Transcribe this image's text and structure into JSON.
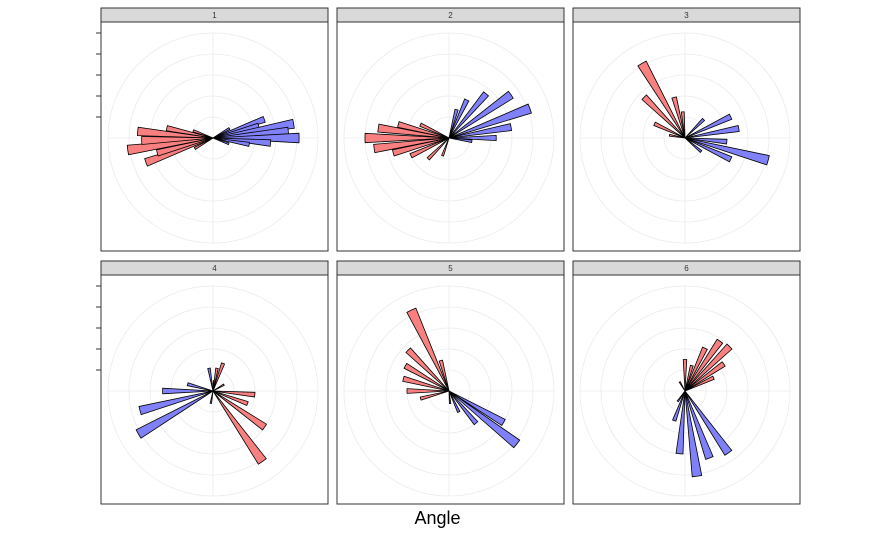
{
  "chart_data": {
    "type": "rose",
    "layout": "facet-grid-2x3",
    "xlabel": "Angle",
    "ylabel": "",
    "angle_range": [
      0,
      360
    ],
    "radius_range": [
      0,
      1
    ],
    "rings": [
      0.2,
      0.4,
      0.6,
      0.8,
      1.0
    ],
    "grid": true,
    "series_colors": {
      "red": "#f88080",
      "blue": "#8080f8"
    },
    "panels": [
      {
        "label": "1",
        "bars": [
          {
            "angle": 60,
            "value": 0.18,
            "color": "blue"
          },
          {
            "angle": 70,
            "value": 0.52,
            "color": "blue"
          },
          {
            "angle": 75,
            "value": 0.45,
            "color": "blue"
          },
          {
            "angle": 80,
            "value": 0.78,
            "color": "blue"
          },
          {
            "angle": 85,
            "value": 0.72,
            "color": "blue"
          },
          {
            "angle": 90,
            "value": 0.82,
            "color": "blue"
          },
          {
            "angle": 95,
            "value": 0.55,
            "color": "blue"
          },
          {
            "angle": 100,
            "value": 0.35,
            "color": "blue"
          },
          {
            "angle": 110,
            "value": 0.16,
            "color": "blue"
          },
          {
            "angle": 240,
            "value": 0.2,
            "color": "red"
          },
          {
            "angle": 250,
            "value": 0.68,
            "color": "red"
          },
          {
            "angle": 255,
            "value": 0.55,
            "color": "red"
          },
          {
            "angle": 262,
            "value": 0.82,
            "color": "red"
          },
          {
            "angle": 268,
            "value": 0.68,
            "color": "red"
          },
          {
            "angle": 275,
            "value": 0.72,
            "color": "red"
          },
          {
            "angle": 282,
            "value": 0.45,
            "color": "red"
          },
          {
            "angle": 290,
            "value": 0.2,
            "color": "red"
          }
        ]
      },
      {
        "label": "2",
        "bars": [
          {
            "angle": 15,
            "value": 0.28,
            "color": "blue"
          },
          {
            "angle": 25,
            "value": 0.4,
            "color": "blue"
          },
          {
            "angle": 40,
            "value": 0.55,
            "color": "blue"
          },
          {
            "angle": 55,
            "value": 0.72,
            "color": "blue"
          },
          {
            "angle": 70,
            "value": 0.82,
            "color": "blue"
          },
          {
            "angle": 80,
            "value": 0.6,
            "color": "blue"
          },
          {
            "angle": 90,
            "value": 0.45,
            "color": "blue"
          },
          {
            "angle": 98,
            "value": 0.22,
            "color": "blue"
          },
          {
            "angle": 200,
            "value": 0.18,
            "color": "red"
          },
          {
            "angle": 225,
            "value": 0.28,
            "color": "red"
          },
          {
            "angle": 245,
            "value": 0.4,
            "color": "red"
          },
          {
            "angle": 255,
            "value": 0.55,
            "color": "red"
          },
          {
            "angle": 262,
            "value": 0.72,
            "color": "red"
          },
          {
            "angle": 270,
            "value": 0.8,
            "color": "red"
          },
          {
            "angle": 278,
            "value": 0.68,
            "color": "red"
          },
          {
            "angle": 285,
            "value": 0.5,
            "color": "red"
          },
          {
            "angle": 295,
            "value": 0.3,
            "color": "red"
          }
        ]
      },
      {
        "label": "3",
        "bars": [
          {
            "angle": 45,
            "value": 0.25,
            "color": "blue"
          },
          {
            "angle": 65,
            "value": 0.48,
            "color": "blue"
          },
          {
            "angle": 80,
            "value": 0.52,
            "color": "blue"
          },
          {
            "angle": 95,
            "value": 0.4,
            "color": "blue"
          },
          {
            "angle": 105,
            "value": 0.82,
            "color": "blue"
          },
          {
            "angle": 115,
            "value": 0.48,
            "color": "blue"
          },
          {
            "angle": 130,
            "value": 0.2,
            "color": "blue"
          },
          {
            "angle": 280,
            "value": 0.15,
            "color": "red"
          },
          {
            "angle": 295,
            "value": 0.32,
            "color": "red"
          },
          {
            "angle": 315,
            "value": 0.55,
            "color": "red"
          },
          {
            "angle": 330,
            "value": 0.82,
            "color": "red"
          },
          {
            "angle": 345,
            "value": 0.4,
            "color": "red"
          },
          {
            "angle": 355,
            "value": 0.25,
            "color": "red"
          }
        ]
      },
      {
        "label": "4",
        "bars": [
          {
            "angle": 5,
            "value": 0.1,
            "color": "blue"
          },
          {
            "angle": 10,
            "value": 0.22,
            "color": "red"
          },
          {
            "angle": 20,
            "value": 0.28,
            "color": "red"
          },
          {
            "angle": 60,
            "value": 0.12,
            "color": "red"
          },
          {
            "angle": 95,
            "value": 0.4,
            "color": "red"
          },
          {
            "angle": 110,
            "value": 0.35,
            "color": "red"
          },
          {
            "angle": 125,
            "value": 0.6,
            "color": "red"
          },
          {
            "angle": 145,
            "value": 0.82,
            "color": "red"
          },
          {
            "angle": 190,
            "value": 0.12,
            "color": "blue"
          },
          {
            "angle": 240,
            "value": 0.82,
            "color": "blue"
          },
          {
            "angle": 255,
            "value": 0.72,
            "color": "blue"
          },
          {
            "angle": 270,
            "value": 0.48,
            "color": "blue"
          },
          {
            "angle": 285,
            "value": 0.25,
            "color": "blue"
          },
          {
            "angle": 350,
            "value": 0.22,
            "color": "blue"
          }
        ]
      },
      {
        "label": "5",
        "bars": [
          {
            "angle": 120,
            "value": 0.6,
            "color": "blue"
          },
          {
            "angle": 128,
            "value": 0.82,
            "color": "blue"
          },
          {
            "angle": 140,
            "value": 0.4,
            "color": "blue"
          },
          {
            "angle": 155,
            "value": 0.22,
            "color": "blue"
          },
          {
            "angle": 175,
            "value": 0.12,
            "color": "blue"
          },
          {
            "angle": 255,
            "value": 0.28,
            "color": "red"
          },
          {
            "angle": 270,
            "value": 0.4,
            "color": "red"
          },
          {
            "angle": 285,
            "value": 0.45,
            "color": "red"
          },
          {
            "angle": 300,
            "value": 0.48,
            "color": "red"
          },
          {
            "angle": 315,
            "value": 0.55,
            "color": "red"
          },
          {
            "angle": 335,
            "value": 0.85,
            "color": "red"
          },
          {
            "angle": 345,
            "value": 0.3,
            "color": "red"
          }
        ]
      },
      {
        "label": "6",
        "bars": [
          {
            "angle": 0,
            "value": 0.3,
            "color": "red"
          },
          {
            "angle": 15,
            "value": 0.25,
            "color": "red"
          },
          {
            "angle": 25,
            "value": 0.45,
            "color": "red"
          },
          {
            "angle": 35,
            "value": 0.58,
            "color": "red"
          },
          {
            "angle": 45,
            "value": 0.6,
            "color": "red"
          },
          {
            "angle": 55,
            "value": 0.45,
            "color": "red"
          },
          {
            "angle": 65,
            "value": 0.3,
            "color": "red"
          },
          {
            "angle": 145,
            "value": 0.72,
            "color": "blue"
          },
          {
            "angle": 160,
            "value": 0.68,
            "color": "blue"
          },
          {
            "angle": 172,
            "value": 0.82,
            "color": "blue"
          },
          {
            "angle": 185,
            "value": 0.6,
            "color": "blue"
          },
          {
            "angle": 200,
            "value": 0.3,
            "color": "blue"
          },
          {
            "angle": 215,
            "value": 0.12,
            "color": "blue"
          },
          {
            "angle": 330,
            "value": 0.1,
            "color": "red"
          }
        ]
      }
    ]
  }
}
